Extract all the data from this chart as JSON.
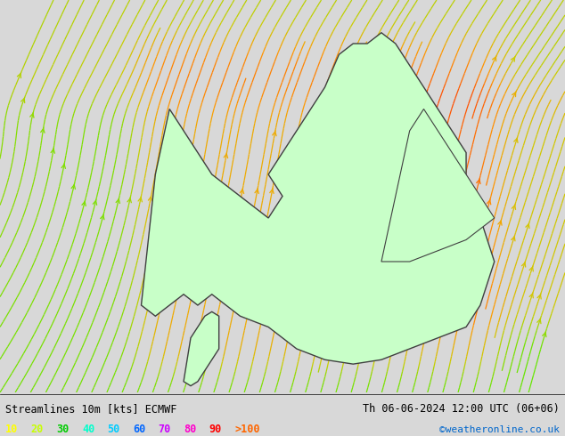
{
  "title_left": "Streamlines 10m [kts] ECMWF",
  "title_right": "Th 06-06-2024 12:00 UTC (06+06)",
  "credit": "©weatheronline.co.uk",
  "legend_values": [
    "10",
    "20",
    "30",
    "40",
    "50",
    "60",
    "70",
    "80",
    "90",
    ">100"
  ],
  "legend_colors": [
    "#ffff00",
    "#c8ff00",
    "#00cc00",
    "#00ffcc",
    "#00ccff",
    "#0066ff",
    "#cc00ff",
    "#ff00cc",
    "#ff0000",
    "#ff6600"
  ],
  "bg_color": "#d8d8d8",
  "land_color": "#c8ffc8",
  "border_color": "#404040",
  "streamline_colors": [
    "#aadd00",
    "#ffcc00"
  ],
  "fig_width": 6.34,
  "fig_height": 4.9,
  "dpi": 100
}
